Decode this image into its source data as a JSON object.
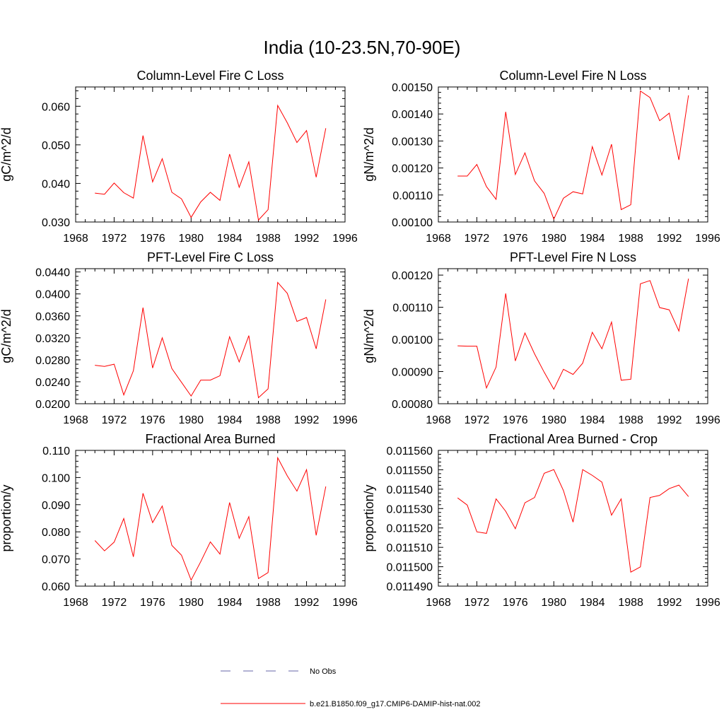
{
  "figure_title": "India (10-23.5N,70-90E)",
  "chart_data": [
    {
      "type": "line",
      "title": "Column-Level Fire C Loss",
      "ylabel": "gC/m^2/d",
      "xlim": [
        1968,
        1996
      ],
      "ylim": [
        0.03,
        0.065
      ],
      "x_ticks": [
        1968,
        1972,
        1976,
        1980,
        1984,
        1988,
        1992,
        1996
      ],
      "y_ticks": [
        0.03,
        0.04,
        0.05,
        0.06
      ],
      "y_decimals": 3,
      "x": [
        1970,
        1971,
        1972,
        1973,
        1974,
        1975,
        1976,
        1977,
        1978,
        1979,
        1980,
        1981,
        1982,
        1983,
        1984,
        1985,
        1986,
        1987,
        1988,
        1989,
        1990,
        1991,
        1992,
        1993,
        1994
      ],
      "series": [
        {
          "values": [
            0.0375,
            0.0372,
            0.0401,
            0.0376,
            0.0362,
            0.0524,
            0.0404,
            0.0464,
            0.0377,
            0.036,
            0.0312,
            0.0352,
            0.0377,
            0.0356,
            0.0476,
            0.039,
            0.0456,
            0.0305,
            0.0332,
            0.0602,
            0.0557,
            0.0506,
            0.0537,
            0.0416,
            0.0543
          ],
          "color": "#ff0000"
        }
      ]
    },
    {
      "type": "line",
      "title": "Column-Level Fire N Loss",
      "ylabel": "gN/m^2/d",
      "xlim": [
        1968,
        1996
      ],
      "ylim": [
        0.001,
        0.0015
      ],
      "x_ticks": [
        1968,
        1972,
        1976,
        1980,
        1984,
        1988,
        1992,
        1996
      ],
      "y_ticks": [
        0.001,
        0.0011,
        0.0012,
        0.0013,
        0.0014,
        0.0015
      ],
      "y_decimals": 5,
      "x": [
        1970,
        1971,
        1972,
        1973,
        1974,
        1975,
        1976,
        1977,
        1978,
        1979,
        1980,
        1981,
        1982,
        1983,
        1984,
        1985,
        1986,
        1987,
        1988,
        1989,
        1990,
        1991,
        1992,
        1993,
        1994
      ],
      "series": [
        {
          "values": [
            0.00117,
            0.00117,
            0.001213,
            0.001131,
            0.001084,
            0.001408,
            0.001176,
            0.001256,
            0.001152,
            0.001106,
            0.001011,
            0.001088,
            0.001112,
            0.001104,
            0.001279,
            0.001174,
            0.001288,
            0.001046,
            0.001064,
            0.001485,
            0.001461,
            0.001375,
            0.001403,
            0.00123,
            0.001469
          ],
          "color": "#ff0000"
        }
      ]
    },
    {
      "type": "line",
      "title": "PFT-Level Fire C Loss",
      "ylabel": "gC/m^2/d",
      "xlim": [
        1968,
        1996
      ],
      "ylim": [
        0.02,
        0.0446
      ],
      "x_ticks": [
        1968,
        1972,
        1976,
        1980,
        1984,
        1988,
        1992,
        1996
      ],
      "y_ticks": [
        0.02,
        0.024,
        0.028,
        0.032,
        0.036,
        0.04,
        0.044
      ],
      "y_decimals": 4,
      "x": [
        1970,
        1971,
        1972,
        1973,
        1974,
        1975,
        1976,
        1977,
        1978,
        1979,
        1980,
        1981,
        1982,
        1983,
        1984,
        1985,
        1986,
        1987,
        1988,
        1989,
        1990,
        1991,
        1992,
        1993,
        1994
      ],
      "series": [
        {
          "values": [
            0.027,
            0.0268,
            0.0272,
            0.0216,
            0.026,
            0.0375,
            0.0265,
            0.032,
            0.0264,
            0.0239,
            0.0214,
            0.0243,
            0.0243,
            0.0251,
            0.0322,
            0.0276,
            0.0324,
            0.0211,
            0.0227,
            0.0421,
            0.0401,
            0.035,
            0.0357,
            0.03,
            0.039
          ],
          "color": "#ff0000"
        }
      ]
    },
    {
      "type": "line",
      "title": "PFT-Level Fire N Loss",
      "ylabel": "gN/m^2/d",
      "xlim": [
        1968,
        1996
      ],
      "ylim": [
        0.0008,
        0.00122
      ],
      "x_ticks": [
        1968,
        1972,
        1976,
        1980,
        1984,
        1988,
        1992,
        1996
      ],
      "y_ticks": [
        0.0008,
        0.0009,
        0.001,
        0.0011,
        0.0012
      ],
      "y_decimals": 5,
      "x": [
        1970,
        1971,
        1972,
        1973,
        1974,
        1975,
        1976,
        1977,
        1978,
        1979,
        1980,
        1981,
        1982,
        1983,
        1984,
        1985,
        1986,
        1987,
        1988,
        1989,
        1990,
        1991,
        1992,
        1993,
        1994
      ],
      "series": [
        {
          "values": [
            0.00098,
            0.000979,
            0.000979,
            0.000849,
            0.000914,
            0.001143,
            0.000933,
            0.00102,
            0.000955,
            0.000898,
            0.000845,
            0.000907,
            0.000891,
            0.000926,
            0.001022,
            0.000971,
            0.001054,
            0.000873,
            0.000876,
            0.001173,
            0.001183,
            0.001099,
            0.001092,
            0.001026,
            0.001189
          ],
          "color": "#ff0000"
        }
      ]
    },
    {
      "type": "line",
      "title": "Fractional Area Burned",
      "ylabel": "proportion/y",
      "xlim": [
        1968,
        1996
      ],
      "ylim": [
        0.06,
        0.11
      ],
      "x_ticks": [
        1968,
        1972,
        1976,
        1980,
        1984,
        1988,
        1992,
        1996
      ],
      "y_ticks": [
        0.06,
        0.07,
        0.08,
        0.09,
        0.1,
        0.11
      ],
      "y_decimals": 3,
      "x": [
        1970,
        1971,
        1972,
        1973,
        1974,
        1975,
        1976,
        1977,
        1978,
        1979,
        1980,
        1981,
        1982,
        1983,
        1984,
        1985,
        1986,
        1987,
        1988,
        1989,
        1990,
        1991,
        1992,
        1993,
        1994
      ],
      "series": [
        {
          "values": [
            0.0768,
            0.073,
            0.0762,
            0.0849,
            0.0708,
            0.0942,
            0.0834,
            0.0895,
            0.075,
            0.0714,
            0.0622,
            0.069,
            0.0763,
            0.0718,
            0.0908,
            0.0776,
            0.0856,
            0.0628,
            0.065,
            0.1073,
            0.1006,
            0.095,
            0.1029,
            0.0787,
            0.0967
          ],
          "color": "#ff0000"
        }
      ]
    },
    {
      "type": "line",
      "title": "Fractional Area Burned - Crop",
      "ylabel": "proportion/y",
      "xlim": [
        1968,
        1996
      ],
      "ylim": [
        0.01149,
        0.01156
      ],
      "x_ticks": [
        1968,
        1972,
        1976,
        1980,
        1984,
        1988,
        1992,
        1996
      ],
      "y_ticks": [
        0.01149,
        0.0115,
        0.01151,
        0.01152,
        0.01153,
        0.01154,
        0.01155,
        0.01156
      ],
      "y_decimals": 6,
      "x": [
        1970,
        1971,
        1972,
        1973,
        1974,
        1975,
        1976,
        1977,
        1978,
        1979,
        1980,
        1981,
        1982,
        1983,
        1984,
        1985,
        1986,
        1987,
        1988,
        1989,
        1990,
        1991,
        1992,
        1993,
        1994
      ],
      "series": [
        {
          "values": [
            0.0115355,
            0.0115318,
            0.011518,
            0.0115172,
            0.011535,
            0.0115286,
            0.0115196,
            0.011533,
            0.0115357,
            0.0115482,
            0.0115501,
            0.0115393,
            0.011523,
            0.0115501,
            0.0115471,
            0.0115436,
            0.0115266,
            0.011535,
            0.0114972,
            0.0114999,
            0.0115357,
            0.0115368,
            0.0115403,
            0.0115421,
            0.0115362
          ],
          "color": "#ff0000"
        }
      ]
    }
  ],
  "legend": [
    {
      "label": "No Obs",
      "style": "dashed",
      "color": "#6666aa"
    },
    {
      "label": "b.e21.B1850.f09_g17.CMIP6-DAMIP-hist-nat.002",
      "style": "solid",
      "color": "#ff0000"
    }
  ]
}
